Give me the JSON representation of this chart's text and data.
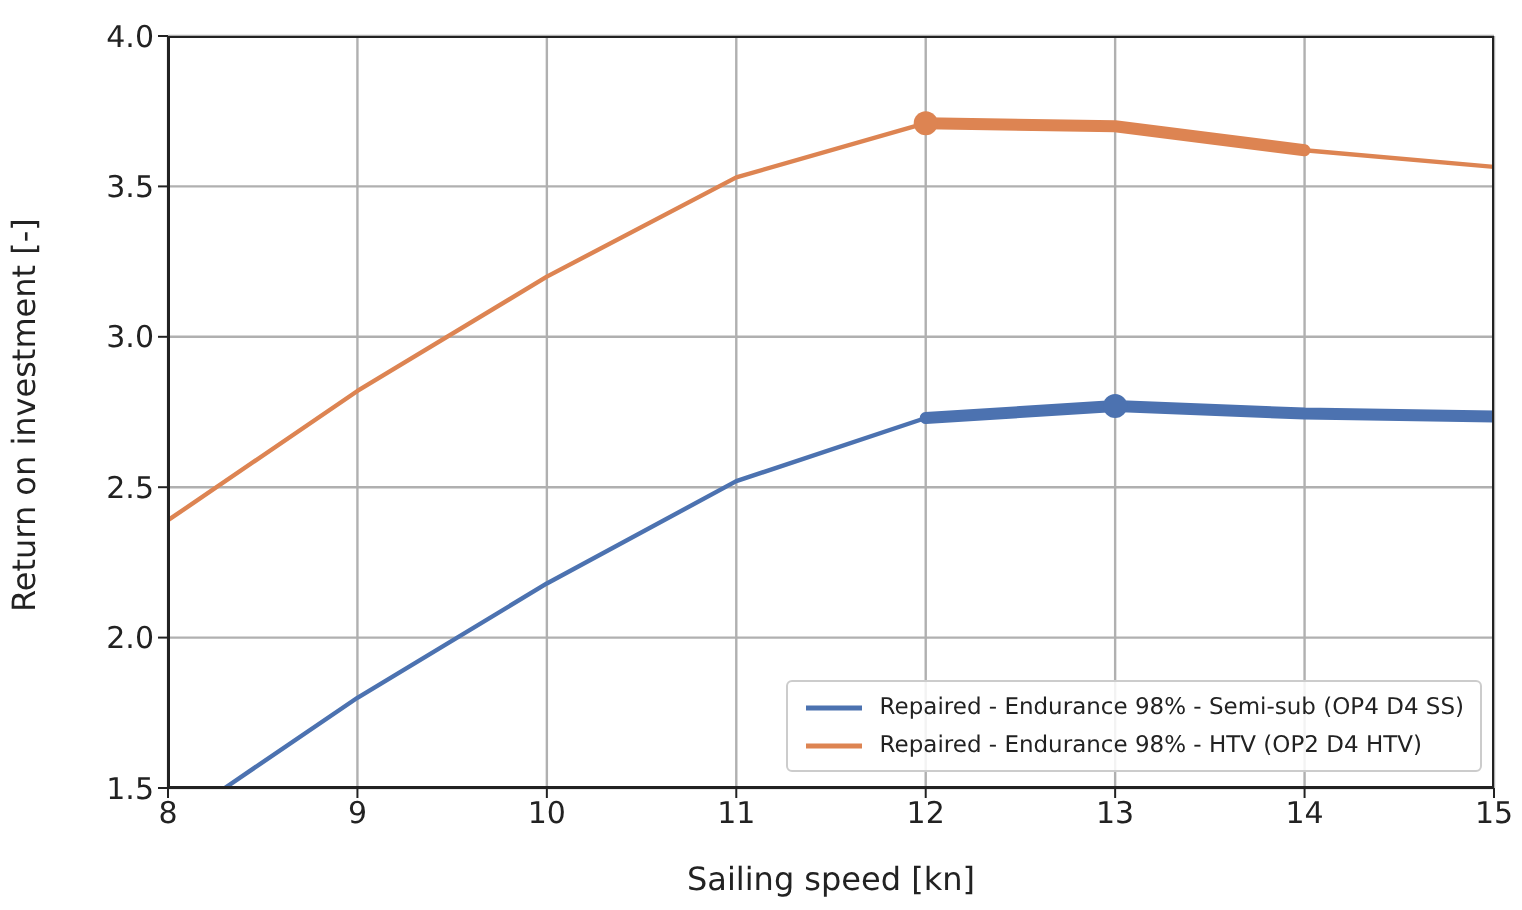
{
  "chart_data": {
    "type": "line",
    "xlabel": "Sailing speed [kn]",
    "ylabel": "Return on investment [-]",
    "xlim": [
      8,
      15
    ],
    "xticks": [
      8,
      9,
      10,
      11,
      12,
      13,
      14,
      15
    ],
    "ylim": [
      1.5,
      4.0
    ],
    "yticks": [
      {
        "value": 1.5,
        "label": "1.5"
      },
      {
        "value": 2.0,
        "label": "2.0"
      },
      {
        "value": 2.5,
        "label": "2.5"
      },
      {
        "value": 3.0,
        "label": "3.0"
      },
      {
        "value": 3.5,
        "label": "3.5"
      },
      {
        "value": 4.0,
        "label": "4.0"
      }
    ],
    "grid": true,
    "legend": "bottom right",
    "marker": "none",
    "series": [
      {
        "name": "Repaired - Endurance 98% - Semi-sub (OP4 D4 SS)",
        "color": "#4c72b0",
        "x": [
          8.3,
          9,
          10,
          11,
          12,
          13,
          14,
          15
        ],
        "values": [
          1.5,
          1.8,
          2.18,
          2.52,
          2.73,
          2.77,
          2.745,
          2.735
        ]
      },
      {
        "name": "Repaired - Endurance 98% - HTV (OP2 D4 HTV)",
        "color": "#dd8452",
        "x": [
          8,
          9,
          10,
          11,
          12,
          13,
          14,
          15
        ],
        "values": [
          2.39,
          2.82,
          3.2,
          3.53,
          3.71,
          3.7,
          3.62,
          3.565
        ]
      },
      {
        "color": "#4c72b0",
        "x": [
          12,
          13,
          14,
          15
        ],
        "values": [
          2.73,
          2.77,
          2.745,
          2.735
        ]
      },
      {
        "color": "#dd8452",
        "x": [
          12,
          13,
          14
        ],
        "values": [
          3.71,
          3.7,
          3.62
        ]
      },
      {
        "type": "scatter",
        "marker": "circle",
        "color": "#4c72b0",
        "x": [
          13
        ],
        "values": [
          2.77
        ]
      },
      {
        "type": "scatter",
        "marker": "circle",
        "color": "#dd8452",
        "x": [
          12
        ],
        "values": [
          3.71
        ]
      }
    ]
  }
}
